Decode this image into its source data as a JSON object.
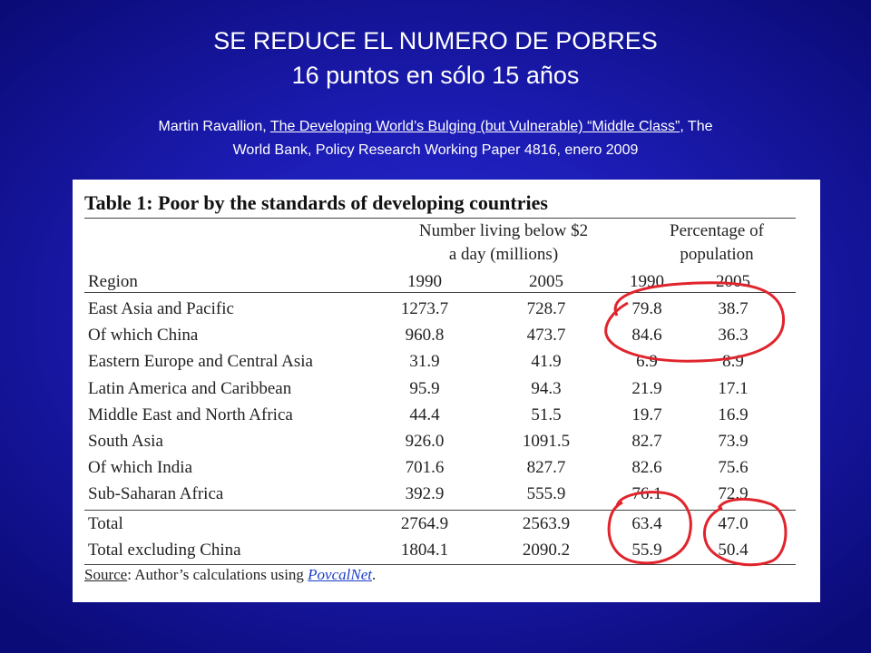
{
  "slide": {
    "title_line1": "SE REDUCE EL NUMERO DE POBRES",
    "title_line2": "16 puntos en sólo 15 años",
    "citation": {
      "author": "Martin Ravallion,",
      "paper_title": "The Developing World’s Bulging (but Vulnerable) “Middle Class”",
      "rest_line1": ", The",
      "line2": "World Bank, Policy Research Working Paper 4816, enero 2009"
    }
  },
  "table": {
    "title": "Table 1: Poor by the standards of developing countries",
    "group_headers": {
      "number_line1": "Number living below $2",
      "number_line2": "a day (millions)",
      "percent_line1": "Percentage of",
      "percent_line2": "population"
    },
    "columns": [
      "Region",
      "1990",
      "2005",
      "1990",
      "2005"
    ],
    "rows": [
      {
        "region": "East Asia and Pacific",
        "n1990": "1273.7",
        "n2005": "728.7",
        "p1990": "79.8",
        "p2005": "38.7"
      },
      {
        "region": "Of which China",
        "n1990": "960.8",
        "n2005": "473.7",
        "p1990": "84.6",
        "p2005": "36.3"
      },
      {
        "region": "Eastern Europe and Central Asia",
        "n1990": "31.9",
        "n2005": "41.9",
        "p1990": "6.9",
        "p2005": "8.9"
      },
      {
        "region": "Latin America and Caribbean",
        "n1990": "95.9",
        "n2005": "94.3",
        "p1990": "21.9",
        "p2005": "17.1"
      },
      {
        "region": "Middle East and North Africa",
        "n1990": "44.4",
        "n2005": "51.5",
        "p1990": "19.7",
        "p2005": "16.9"
      },
      {
        "region": "South Asia",
        "n1990": "926.0",
        "n2005": "1091.5",
        "p1990": "82.7",
        "p2005": "73.9"
      },
      {
        "region": "Of which India",
        "n1990": "701.6",
        "n2005": "827.7",
        "p1990": "82.6",
        "p2005": "75.6"
      },
      {
        "region": "Sub-Saharan Africa",
        "n1990": "392.9",
        "n2005": "555.9",
        "p1990": "76.1",
        "p2005": "72.9"
      }
    ],
    "totals": [
      {
        "region": "Total",
        "n1990": "2764.9",
        "n2005": "2563.9",
        "p1990": "63.4",
        "p2005": "47.0"
      },
      {
        "region": "Total excluding China",
        "n1990": "1804.1",
        "n2005": "2090.2",
        "p1990": "55.9",
        "p2005": "50.4"
      }
    ],
    "source_label": "Source",
    "source_text": ": Author’s calculations using ",
    "source_link": "PovcalNet",
    "source_end": "."
  },
  "annotation_color": "#e0242c"
}
